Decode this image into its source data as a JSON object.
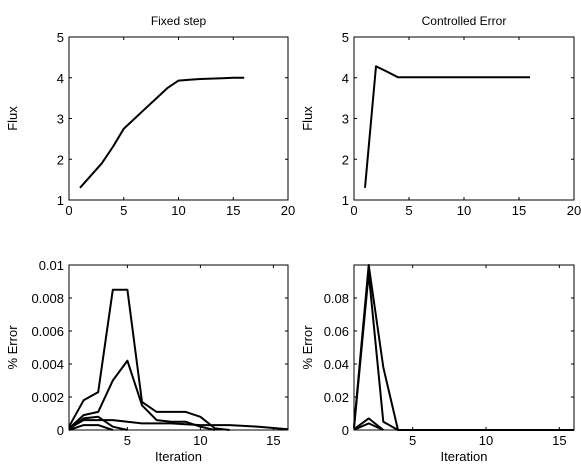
{
  "chart_data": [
    {
      "type": "line",
      "title": "Fixed step",
      "xlabel": "",
      "ylabel": "Flux",
      "xlim": [
        0,
        20
      ],
      "ylim": [
        1,
        5
      ],
      "xticks": [
        "0",
        "5",
        "10",
        "15",
        "20"
      ],
      "yticks": [
        "1",
        "2",
        "3",
        "4",
        "5"
      ],
      "series": [
        {
          "x": [
            1,
            2,
            3,
            4,
            5,
            6,
            7,
            8,
            9,
            10,
            11,
            12,
            13,
            14,
            15,
            16
          ],
          "y": [
            1.3,
            1.6,
            1.9,
            2.3,
            2.75,
            3.0,
            3.25,
            3.5,
            3.75,
            3.93,
            3.95,
            3.97,
            3.98,
            3.99,
            4.0,
            4.0
          ]
        }
      ]
    },
    {
      "type": "line",
      "title": "Controlled Error",
      "xlabel": "",
      "ylabel": "Flux",
      "xlim": [
        0,
        20
      ],
      "ylim": [
        1,
        5
      ],
      "xticks": [
        "0",
        "5",
        "10",
        "15",
        "20"
      ],
      "yticks": [
        "1",
        "2",
        "3",
        "4",
        "5"
      ],
      "series": [
        {
          "x": [
            1,
            2,
            3,
            4,
            6,
            8,
            10,
            12,
            14,
            16
          ],
          "y": [
            1.3,
            4.28,
            4.15,
            4.01,
            4.01,
            4.01,
            4.01,
            4.01,
            4.01,
            4.01
          ]
        }
      ]
    },
    {
      "type": "line",
      "title": "",
      "xlabel": "Iteration",
      "ylabel": "% Error",
      "xlim": [
        1,
        16
      ],
      "ylim": [
        0,
        0.01
      ],
      "xticks": [
        "5",
        "10",
        "15"
      ],
      "yticks": [
        "0",
        "0.002",
        "0.004",
        "0.006",
        "0.008",
        "0.01"
      ],
      "series": [
        {
          "x": [
            1,
            2,
            3,
            4,
            5,
            6,
            7,
            8,
            9,
            10,
            11,
            12
          ],
          "y": [
            0.0002,
            0.0018,
            0.0023,
            0.0085,
            0.0085,
            0.0017,
            0.0011,
            0.0011,
            0.0011,
            0.0008,
            0.0001,
            0
          ]
        },
        {
          "x": [
            1,
            2,
            3,
            4,
            5,
            6,
            7,
            8,
            9,
            10,
            11
          ],
          "y": [
            0.0001,
            0.0009,
            0.0011,
            0.003,
            0.0042,
            0.0015,
            0.0006,
            0.0005,
            0.0005,
            0.0002,
            0
          ]
        },
        {
          "x": [
            1,
            2,
            3,
            4,
            5,
            6,
            8,
            10,
            12,
            14,
            16
          ],
          "y": [
            0.0001,
            0.0006,
            0.0006,
            0.0006,
            0.0005,
            0.0004,
            0.0004,
            0.0003,
            0.0003,
            0.0002,
            5e-05
          ]
        },
        {
          "x": [
            1,
            2,
            3,
            4,
            5
          ],
          "y": [
            5e-05,
            0.0007,
            0.0008,
            0.0002,
            0
          ]
        },
        {
          "x": [
            1,
            2,
            3,
            4
          ],
          "y": [
            0,
            0.0003,
            0.0003,
            0
          ]
        }
      ]
    },
    {
      "type": "line",
      "title": "",
      "xlabel": "Iteration",
      "ylabel": "% Error",
      "xlim": [
        1,
        16
      ],
      "ylim": [
        0,
        0.1
      ],
      "xticks": [
        "5",
        "10",
        "15"
      ],
      "yticks": [
        "0",
        "0.02",
        "0.04",
        "0.06",
        "0.08"
      ],
      "series": [
        {
          "x": [
            1,
            2,
            3,
            4,
            5,
            10,
            16
          ],
          "y": [
            0.002,
            0.1,
            0.038,
            0,
            0,
            0,
            0
          ]
        },
        {
          "x": [
            1,
            2,
            3,
            4
          ],
          "y": [
            0.001,
            0.095,
            0.005,
            0
          ]
        },
        {
          "x": [
            1,
            2,
            3
          ],
          "y": [
            0.0005,
            0.007,
            0
          ]
        },
        {
          "x": [
            1,
            2,
            3
          ],
          "y": [
            0.0002,
            0.004,
            0
          ]
        }
      ]
    }
  ]
}
